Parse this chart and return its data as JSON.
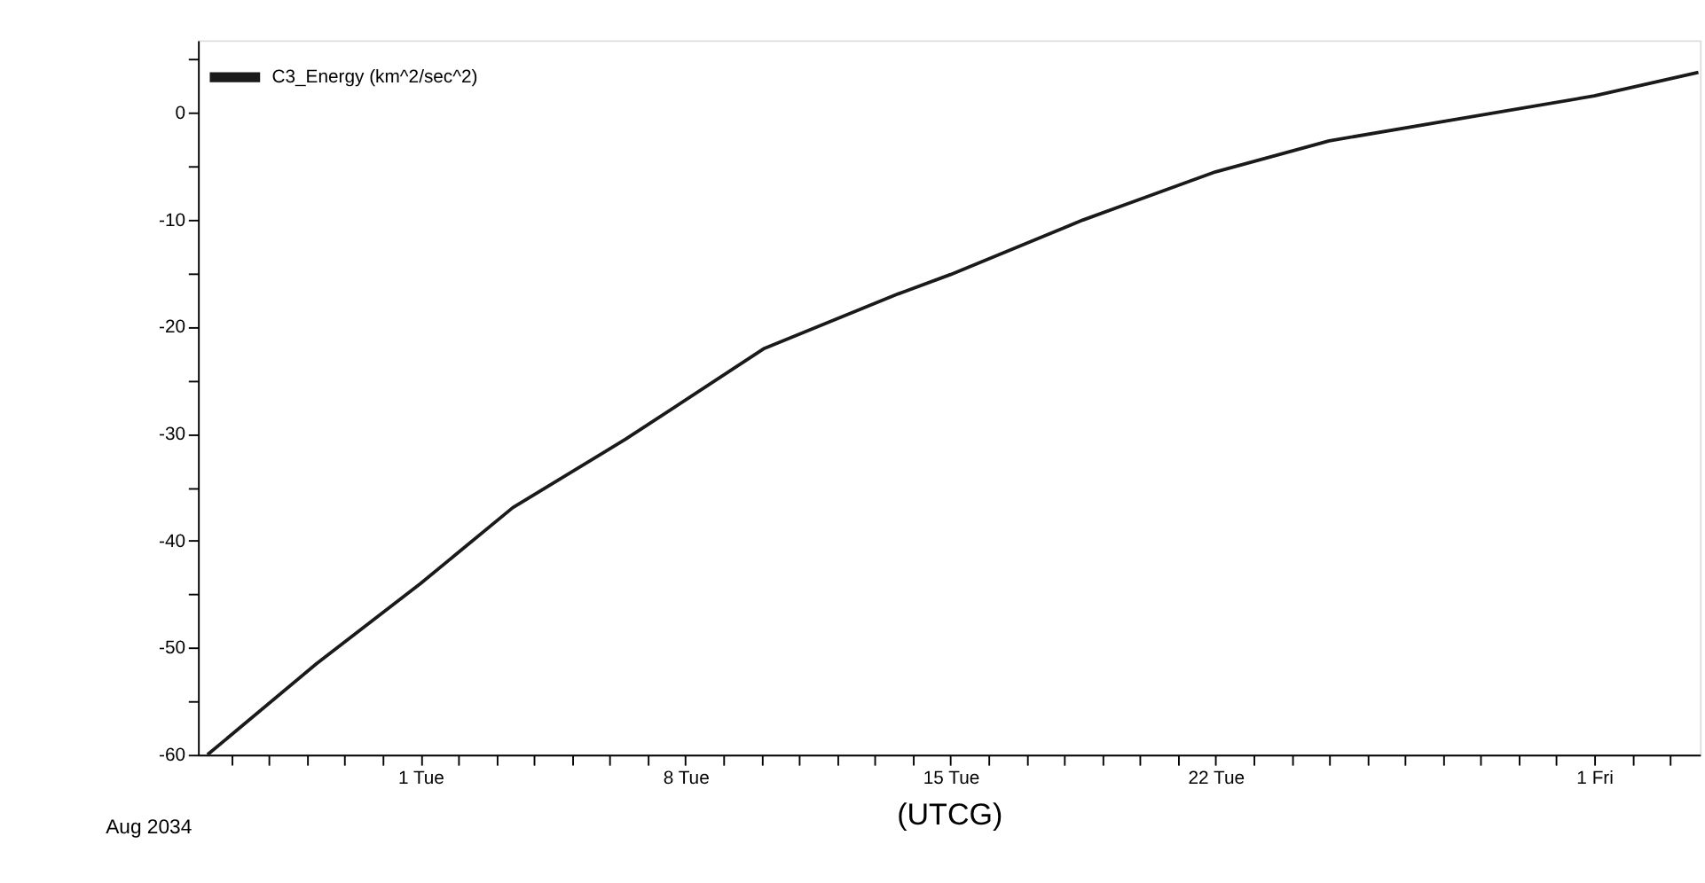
{
  "chart_data": {
    "type": "line",
    "xlabel": "(UTCG)",
    "legend": "top left",
    "grid": false,
    "marker": "none",
    "line_style": "solid",
    "annotations": [
      "Aug 2034"
    ],
    "xlim": [
      "2034-07-26T03:00",
      "2034-09-03T19:00"
    ],
    "ylim": [
      -60,
      6.8
    ],
    "yticks": [
      -60,
      {
        "value": -55,
        "label": null
      },
      -50,
      {
        "value": -45,
        "label": null
      },
      -40,
      {
        "value": -35,
        "label": null
      },
      -30,
      {
        "value": -25,
        "label": null
      },
      -20,
      {
        "value": -15,
        "label": null
      },
      -10,
      {
        "value": -5,
        "label": null
      },
      0,
      {
        "value": 5,
        "label": null
      }
    ],
    "xticks": [
      {
        "value": "2034-07-27",
        "label": null
      },
      {
        "value": "2034-07-28",
        "label": null
      },
      {
        "value": "2034-07-29",
        "label": null
      },
      {
        "value": "2034-07-30",
        "label": null
      },
      {
        "value": "2034-07-31",
        "label": null
      },
      {
        "value": "2034-08-01",
        "label": "1 Tue"
      },
      {
        "value": "2034-08-02",
        "label": null
      },
      {
        "value": "2034-08-03",
        "label": null
      },
      {
        "value": "2034-08-04",
        "label": null
      },
      {
        "value": "2034-08-05",
        "label": null
      },
      {
        "value": "2034-08-06",
        "label": null
      },
      {
        "value": "2034-08-07",
        "label": null
      },
      {
        "value": "2034-08-08",
        "label": "8 Tue"
      },
      {
        "value": "2034-08-09",
        "label": null
      },
      {
        "value": "2034-08-10",
        "label": null
      },
      {
        "value": "2034-08-11",
        "label": null
      },
      {
        "value": "2034-08-12",
        "label": null
      },
      {
        "value": "2034-08-13",
        "label": null
      },
      {
        "value": "2034-08-14",
        "label": null
      },
      {
        "value": "2034-08-15",
        "label": "15 Tue"
      },
      {
        "value": "2034-08-16",
        "label": null
      },
      {
        "value": "2034-08-17",
        "label": null
      },
      {
        "value": "2034-08-18",
        "label": null
      },
      {
        "value": "2034-08-19",
        "label": null
      },
      {
        "value": "2034-08-20",
        "label": null
      },
      {
        "value": "2034-08-21",
        "label": null
      },
      {
        "value": "2034-08-22",
        "label": "22 Tue"
      },
      {
        "value": "2034-08-23",
        "label": null
      },
      {
        "value": "2034-08-24",
        "label": null
      },
      {
        "value": "2034-08-25",
        "label": null
      },
      {
        "value": "2034-08-26",
        "label": null
      },
      {
        "value": "2034-08-27",
        "label": null
      },
      {
        "value": "2034-08-28",
        "label": null
      },
      {
        "value": "2034-08-29",
        "label": null
      },
      {
        "value": "2034-08-30",
        "label": null
      },
      {
        "value": "2034-08-31",
        "label": null
      },
      {
        "value": "2034-09-01",
        "label": "1 Fri"
      },
      {
        "value": "2034-09-02",
        "label": null
      },
      {
        "value": "2034-09-03",
        "label": null
      }
    ],
    "series": [
      {
        "name": "C3_Energy (km^2/sec^2)",
        "color": "#1a1a1a",
        "x": [
          "2034-07-26T09:00",
          "2034-07-29T06:00",
          "2034-08-01T00:00",
          "2034-08-03T10:30",
          "2034-08-06T10:00",
          "2034-08-10T02:00",
          "2034-08-13T15:00",
          "2034-08-15T00:00",
          "2034-08-18T12:00",
          "2034-08-22T00:00",
          "2034-08-25T00:00",
          "2034-08-28T00:00",
          "2034-09-01T00:00",
          "2034-09-03T18:00"
        ],
        "values": [
          -60,
          -51.5,
          -44.0,
          -36.9,
          -30.5,
          -22.0,
          -16.9,
          -15.1,
          -10.0,
          -5.5,
          -2.6,
          -0.8,
          1.6,
          3.8
        ]
      }
    ]
  }
}
